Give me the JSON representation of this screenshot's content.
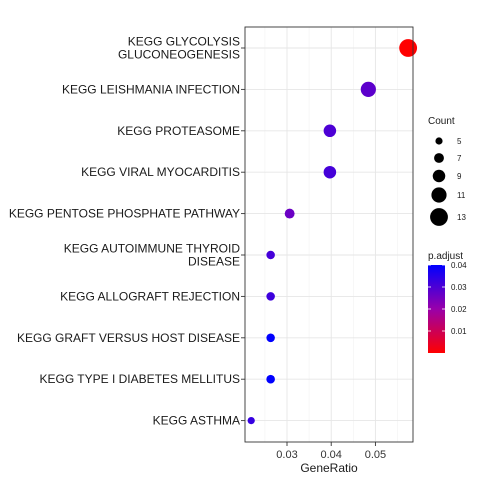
{
  "chart_data": {
    "type": "scatter",
    "title": "",
    "xlabel": "GeneRatio",
    "ylabel": "",
    "xlim": [
      0.0205,
      0.0585
    ],
    "xticks": [
      0.03,
      0.04,
      0.05
    ],
    "xtick_labels": [
      "0.03",
      "0.04",
      "0.05"
    ],
    "grid": true,
    "categories": [
      [
        "KEGG GLYCOLYSIS",
        "GLUCONEOGENESIS"
      ],
      [
        "KEGG LEISHMANIA INFECTION"
      ],
      [
        "KEGG PROTEASOME"
      ],
      [
        "KEGG VIRAL MYOCARDITIS"
      ],
      [
        "KEGG PENTOSE PHOSPHATE PATHWAY"
      ],
      [
        "KEGG AUTOIMMUNE THYROID",
        "DISEASE"
      ],
      [
        "KEGG ALLOGRAFT REJECTION"
      ],
      [
        "KEGG GRAFT VERSUS HOST DISEASE"
      ],
      [
        "KEGG TYPE I DIABETES MELLITUS"
      ],
      [
        "KEGG ASTHMA"
      ]
    ],
    "points": [
      {
        "gene_ratio": 0.0574,
        "count": 13,
        "p_adjust": 0.0
      },
      {
        "gene_ratio": 0.0484,
        "count": 11,
        "p_adjust": 0.028
      },
      {
        "gene_ratio": 0.0397,
        "count": 9,
        "p_adjust": 0.03
      },
      {
        "gene_ratio": 0.0397,
        "count": 9,
        "p_adjust": 0.031
      },
      {
        "gene_ratio": 0.0306,
        "count": 7,
        "p_adjust": 0.026
      },
      {
        "gene_ratio": 0.0263,
        "count": 6,
        "p_adjust": 0.031
      },
      {
        "gene_ratio": 0.0263,
        "count": 6,
        "p_adjust": 0.032
      },
      {
        "gene_ratio": 0.0263,
        "count": 6,
        "p_adjust": 0.04
      },
      {
        "gene_ratio": 0.0263,
        "count": 6,
        "p_adjust": 0.04
      },
      {
        "gene_ratio": 0.0219,
        "count": 5,
        "p_adjust": 0.033
      }
    ],
    "size_legend": {
      "title": "Count",
      "values": [
        5,
        7,
        9,
        11,
        13
      ],
      "labels": [
        "5",
        "7",
        "9",
        "11",
        "13"
      ]
    },
    "color_legend": {
      "title": "p.adjust",
      "range": [
        0.0,
        0.04
      ],
      "ticks": [
        0.01,
        0.02,
        0.03,
        0.04
      ],
      "labels": [
        "0.01",
        "0.02",
        "0.03",
        "0.04"
      ],
      "low_color": "#ff0000",
      "high_color": "#0000ff"
    },
    "legend_position": "right"
  }
}
